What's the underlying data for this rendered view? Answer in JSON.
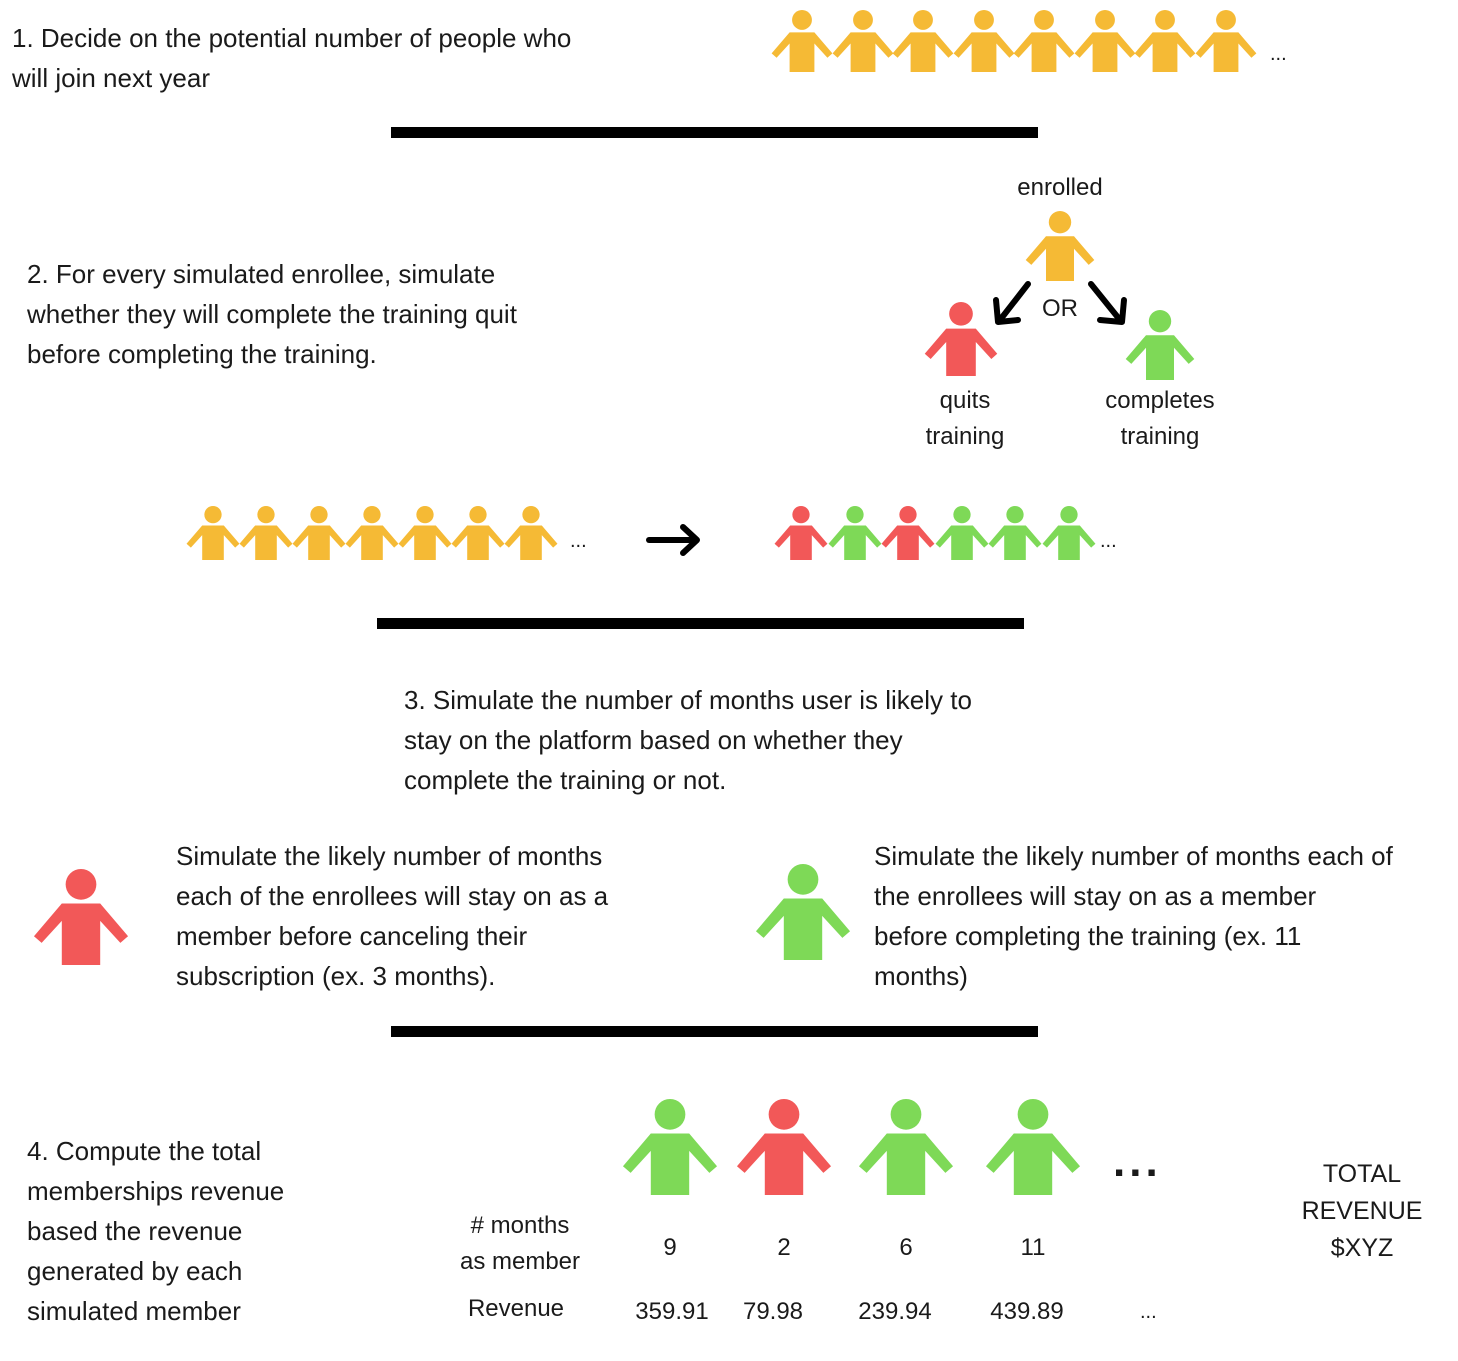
{
  "colors": {
    "yellow": "#F5BA35",
    "red": "#F25858",
    "green": "#7ED957",
    "line": "#000000"
  },
  "icons": {
    "person": "person-icon",
    "arrow": "arrow-icon"
  },
  "step1": {
    "text": "1. Decide on the potential number of people who\nwill join next year",
    "crowd": [
      "yellow",
      "yellow",
      "yellow",
      "yellow",
      "yellow",
      "yellow",
      "yellow",
      "yellow"
    ],
    "ellipsis": "..."
  },
  "step2": {
    "text": "2. For every simulated enrollee, simulate\nwhether they will complete the training quit\nbefore completing the training.",
    "tree": {
      "root_label": "enrolled",
      "or_label": "OR",
      "left_label": "quits\ntraining",
      "right_label": "completes\ntraining"
    },
    "before": [
      "yellow",
      "yellow",
      "yellow",
      "yellow",
      "yellow",
      "yellow",
      "yellow"
    ],
    "after": [
      "red",
      "green",
      "red",
      "green",
      "green",
      "green"
    ],
    "ellipsis_before": "...",
    "ellipsis_after": "..."
  },
  "step3": {
    "text": "3. Simulate the number of months  user is likely to\nstay on the platform based on whether they\ncomplete the training or not.",
    "quit_text": "Simulate the likely number of months\neach of the enrollees will stay on as a\nmember before canceling their\nsubscription (ex. 3 months).",
    "complete_text": "Simulate the likely number of months each of\nthe enrollees will stay on as a member\nbefore completing the training (ex. 11\nmonths)"
  },
  "step4": {
    "text": "4. Compute the total\nmemberships revenue\nbased the revenue\ngenerated by each\nsimulated member",
    "months_label": "# months\nas member",
    "revenue_label": "Revenue",
    "members": [
      {
        "color": "green",
        "months": "9",
        "revenue": "359.91"
      },
      {
        "color": "red",
        "months": "2",
        "revenue": "79.98"
      },
      {
        "color": "green",
        "months": "6",
        "revenue": "239.94"
      },
      {
        "color": "green",
        "months": "11",
        "revenue": "439.89"
      }
    ],
    "ellipsis_icons": "...",
    "ellipsis_revenue": "...",
    "total": "TOTAL\nREVENUE\n$XYZ"
  }
}
